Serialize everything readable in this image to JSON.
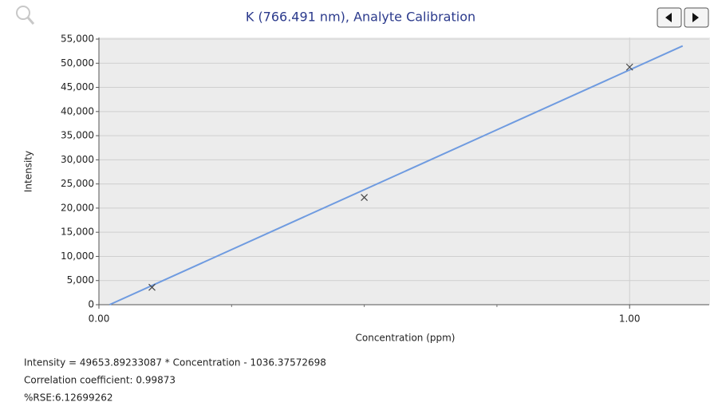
{
  "chart_data": {
    "type": "scatter",
    "title": "K (766.491 nm), Analyte Calibration",
    "x_label": "Concentration (ppm)",
    "y_label": "Intensity",
    "points": {
      "x": [
        0.1,
        0.5,
        1.0
      ],
      "values": [
        3600,
        22200,
        49200
      ],
      "color": "#444444"
    },
    "fit_line": {
      "x": [
        0.02,
        1.1
      ],
      "values": [
        0,
        53580
      ],
      "color": "#6f9be0"
    },
    "xlim": [
      0,
      1.15
    ],
    "xticks": [
      {
        "value": 0,
        "label": "0.00"
      },
      {
        "value": 1,
        "label": "1.00"
      }
    ],
    "x_minor_ticks": [
      0.25,
      0.5,
      0.75
    ],
    "ylim": [
      0,
      55000
    ],
    "yticks": [
      0,
      {
        "value": 5000,
        "label": "5,000"
      },
      {
        "value": 10000,
        "label": "10,000"
      },
      {
        "value": 15000,
        "label": "15,000"
      },
      {
        "value": 20000,
        "label": "20,000"
      },
      {
        "value": 25000,
        "label": "25,000"
      },
      {
        "value": 30000,
        "label": "30,000"
      },
      {
        "value": 35000,
        "label": "35,000"
      },
      {
        "value": 40000,
        "label": "40,000"
      },
      {
        "value": 45000,
        "label": "45,000"
      },
      {
        "value": 50000,
        "label": "50,000"
      },
      {
        "value": 55000,
        "label": "55,000"
      }
    ],
    "grid": true,
    "annotations": [
      "Intensity  = 49653.89233087 * Concentration - 1036.37572698",
      "Correlation coefficient: 0.99873",
      "%RSE:6.12699262"
    ]
  }
}
